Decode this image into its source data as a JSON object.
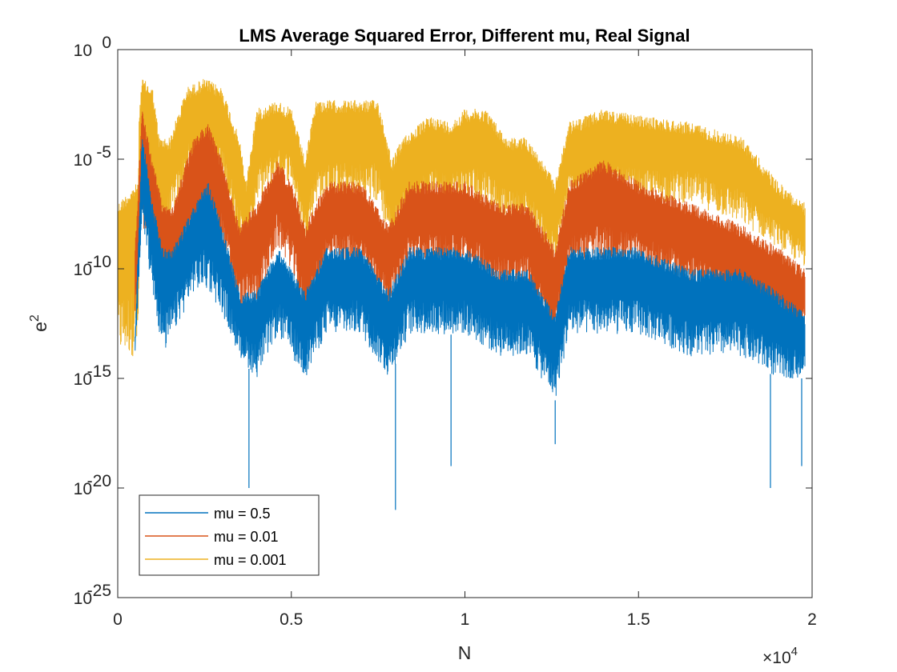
{
  "chart_data": {
    "type": "line",
    "title": "LMS Average Squared Error, Different mu, Real Signal",
    "xlabel": "N",
    "ylabel_base": "e",
    "ylabel_sup": "2",
    "x_multiplier": "×10",
    "x_multiplier_exp": "4",
    "xlim": [
      0,
      20000
    ],
    "ylim": [
      1e-25,
      1
    ],
    "yscale": "log",
    "xticks": [
      {
        "value": 0,
        "label": "0"
      },
      {
        "value": 5000,
        "label": "0.5"
      },
      {
        "value": 10000,
        "label": "1"
      },
      {
        "value": 15000,
        "label": "1.5"
      },
      {
        "value": 20000,
        "label": "2"
      }
    ],
    "yticks": [
      {
        "value": 1,
        "base": "10",
        "exp": "0"
      },
      {
        "value": 1e-05,
        "base": "10",
        "exp": "-5"
      },
      {
        "value": 1e-10,
        "base": "10",
        "exp": "-10"
      },
      {
        "value": 1e-15,
        "base": "10",
        "exp": "-15"
      },
      {
        "value": 1e-20,
        "base": "10",
        "exp": "-20"
      },
      {
        "value": 1e-25,
        "base": "10",
        "exp": "-25"
      }
    ],
    "grid": false,
    "legend_position": "bottom-left",
    "series": [
      {
        "name": "mu = 0.001",
        "color": "#EDB120",
        "band": [
          [
            0,
            1e-14,
            1e-07
          ],
          [
            600,
            1e-14,
            1e-06
          ],
          [
            610,
            1e-08,
            0.001
          ],
          [
            700,
            1e-06,
            0.05
          ],
          [
            1000,
            1e-07,
            0.02
          ],
          [
            1200,
            1e-09,
            0.0001
          ],
          [
            1500,
            1e-08,
            0.0001
          ],
          [
            2000,
            1e-06,
            0.02
          ],
          [
            2500,
            1e-06,
            0.05
          ],
          [
            3000,
            1e-06,
            0.02
          ],
          [
            3500,
            1e-09,
            0.0001
          ],
          [
            3700,
            1e-10,
            1e-06
          ],
          [
            4000,
            1e-07,
            0.002
          ],
          [
            4600,
            1e-06,
            0.005
          ],
          [
            5000,
            1e-06,
            0.002
          ],
          [
            5400,
            1e-09,
            1e-05
          ],
          [
            5700,
            1e-07,
            0.005
          ],
          [
            6500,
            1e-07,
            0.005
          ],
          [
            7500,
            1e-07,
            0.005
          ],
          [
            7900,
            1e-09,
            1e-05
          ],
          [
            8200,
            1e-08,
            0.0001
          ],
          [
            9000,
            1e-07,
            0.001
          ],
          [
            9600,
            1e-07,
            0.0005
          ],
          [
            10000,
            1e-07,
            0.002
          ],
          [
            10600,
            1e-07,
            0.002
          ],
          [
            11200,
            1e-08,
            0.0001
          ],
          [
            11800,
            1e-08,
            0.0001
          ],
          [
            12600,
            1e-10,
            1e-06
          ],
          [
            13000,
            1e-07,
            0.0005
          ],
          [
            14000,
            1e-07,
            0.002
          ],
          [
            15000,
            1e-07,
            0.001
          ],
          [
            16500,
            1e-07,
            0.0005
          ],
          [
            18000,
            1e-08,
            0.0001
          ],
          [
            19000,
            1e-09,
            1e-06
          ],
          [
            19800,
            1e-10,
            1e-07
          ]
        ]
      },
      {
        "name": "mu = 0.01",
        "color": "#D95319",
        "band": [
          [
            500,
            1e-12,
            1e-09
          ],
          [
            700,
            1e-08,
            0.002
          ],
          [
            1000,
            1e-09,
            1e-05
          ],
          [
            1300,
            1e-12,
            1e-07
          ],
          [
            1600,
            1e-11,
            1e-07
          ],
          [
            2200,
            1e-09,
            0.0001
          ],
          [
            2600,
            1e-09,
            0.0005
          ],
          [
            3000,
            1e-09,
            1e-05
          ],
          [
            3500,
            1e-12,
            1e-08
          ],
          [
            4000,
            1e-12,
            1e-07
          ],
          [
            4600,
            1e-09,
            1e-05
          ],
          [
            5000,
            1e-10,
            1e-06
          ],
          [
            5400,
            1e-13,
            1e-08
          ],
          [
            6000,
            1e-10,
            1e-06
          ],
          [
            7000,
            1e-10,
            1e-06
          ],
          [
            7800,
            1e-12,
            1e-08
          ],
          [
            8400,
            1e-10,
            1e-06
          ],
          [
            9000,
            1e-10,
            1e-06
          ],
          [
            10000,
            1e-10,
            1e-06
          ],
          [
            11000,
            1e-11,
            1e-07
          ],
          [
            11800,
            1e-11,
            1e-07
          ],
          [
            12600,
            1e-14,
            1e-09
          ],
          [
            13000,
            1e-10,
            1e-06
          ],
          [
            14000,
            1e-10,
            1e-05
          ],
          [
            15000,
            1e-10,
            1e-06
          ],
          [
            16500,
            1e-11,
            1e-07
          ],
          [
            18000,
            1e-12,
            1e-08
          ],
          [
            19000,
            1e-13,
            1e-09
          ],
          [
            19800,
            1e-13,
            1e-10
          ]
        ]
      },
      {
        "name": "mu = 0.5",
        "color": "#0072BD",
        "band": [
          [
            500,
            1e-14,
            1e-13
          ],
          [
            700,
            1e-08,
            0.0002
          ],
          [
            1000,
            1e-11,
            1e-07
          ],
          [
            1300,
            1e-14,
            1e-09
          ],
          [
            1600,
            1e-13,
            1e-09
          ],
          [
            2200,
            1e-11,
            1e-07
          ],
          [
            2600,
            1e-11,
            1e-06
          ],
          [
            3000,
            1e-12,
            1e-08
          ],
          [
            3500,
            1e-14,
            1e-11
          ],
          [
            4000,
            1e-15,
            1e-11
          ],
          [
            4600,
            1e-13,
            1e-09
          ],
          [
            5000,
            1e-14,
            1e-10
          ],
          [
            5400,
            1e-15,
            1e-11
          ],
          [
            6000,
            1e-13,
            1e-09
          ],
          [
            7000,
            1e-13,
            1e-09
          ],
          [
            7800,
            1e-15,
            1e-11
          ],
          [
            8400,
            1e-13,
            1e-09
          ],
          [
            9000,
            1e-13,
            1e-09
          ],
          [
            10000,
            1e-13,
            1e-09
          ],
          [
            11000,
            1e-14,
            1e-10
          ],
          [
            11800,
            1e-14,
            1e-10
          ],
          [
            12600,
            1e-16,
            1e-12
          ],
          [
            13000,
            1e-13,
            1e-09
          ],
          [
            14000,
            1e-13,
            1e-09
          ],
          [
            15000,
            1e-13,
            1e-09
          ],
          [
            16500,
            1e-14,
            1e-10
          ],
          [
            18000,
            1e-14,
            1e-10
          ],
          [
            19000,
            1e-15,
            1e-11
          ],
          [
            19800,
            1e-15,
            1e-12
          ]
        ],
        "dips": [
          [
            3780,
            1e-20
          ],
          [
            8000,
            1e-21
          ],
          [
            9600,
            1e-19
          ],
          [
            12600,
            1e-18
          ],
          [
            18800,
            1e-20
          ],
          [
            19700,
            1e-19
          ]
        ]
      }
    ]
  }
}
